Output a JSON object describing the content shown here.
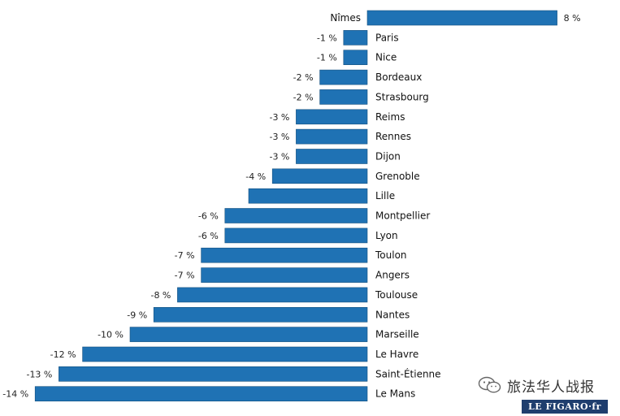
{
  "chart_data": {
    "type": "bar",
    "orientation": "horizontal",
    "categories": [
      "Nîmes",
      "Paris",
      "Nice",
      "Bordeaux",
      "Strasbourg",
      "Reims",
      "Rennes",
      "Dijon",
      "Grenoble",
      "Lille",
      "Montpellier",
      "Lyon",
      "Toulon",
      "Angers",
      "Toulouse",
      "Nantes",
      "Marseille",
      "Le Havre",
      "Saint-Étienne",
      "Le Mans"
    ],
    "values": [
      8,
      -1,
      -1,
      -2,
      -2,
      -3,
      -3,
      -3,
      -4,
      -5,
      -6,
      -6,
      -7,
      -7,
      -8,
      -9,
      -10,
      -12,
      -13,
      -14
    ],
    "value_labels": [
      "8 %",
      "-1 %",
      "-1 %",
      "-2 %",
      "-2 %",
      "-3 %",
      "-3 %",
      "-3 %",
      "-4 %",
      "",
      "-6 %",
      "-6 %",
      "-7 %",
      "-7 %",
      "-8 %",
      "-9 %",
      "-10 %",
      "-12 %",
      "-13 %",
      "-14 %"
    ],
    "xlim": [
      -14,
      8
    ],
    "grid": false,
    "bar_color": "#1f72b4"
  },
  "watermark": {
    "text": "旅法华人战报",
    "icon": "wechat-icon"
  },
  "logo": {
    "text": "LE FIGARO·fr"
  }
}
